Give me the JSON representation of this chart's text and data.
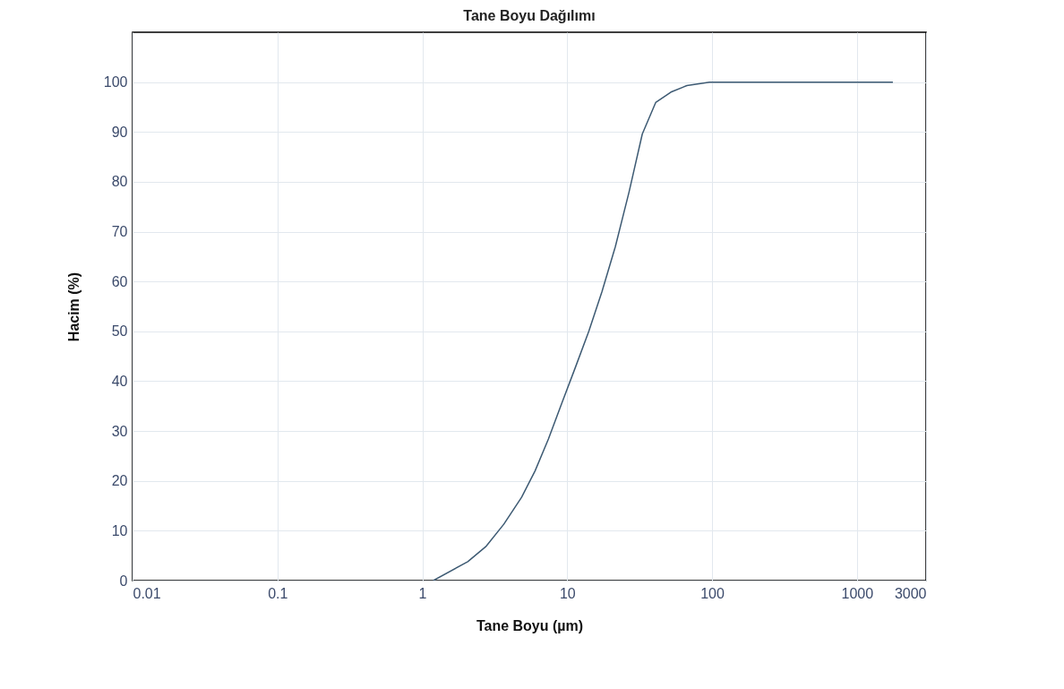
{
  "chart_data": {
    "type": "line",
    "title": "Tane Boyu Dağılımı",
    "xlabel": "Tane Boyu (µm)",
    "ylabel": "Hacim (%)",
    "x": [
      1.19,
      2.06,
      2.74,
      3.65,
      4.84,
      6.0,
      7.42,
      9.18,
      11.4,
      14.1,
      17.4,
      21.5,
      26.7,
      33,
      40.8,
      52,
      67,
      96,
      1770
    ],
    "series": [
      {
        "color": "#3d5a73",
        "values": [
          0,
          3.8,
          6.8,
          11.3,
          16.7,
          22,
          28.4,
          35.6,
          42.8,
          50,
          58,
          67,
          77.9,
          89.6,
          95.9,
          98,
          99.3,
          100,
          100
        ]
      }
    ],
    "log": "x",
    "xlim": [
      0.01,
      3000
    ],
    "xticks": [
      0.01,
      0.1,
      1,
      10,
      100,
      1000,
      3000
    ],
    "ylim": [
      0,
      110
    ],
    "yticks": [
      0,
      10,
      20,
      30,
      40,
      50,
      60,
      70,
      80,
      90,
      100
    ],
    "grid": true,
    "marker": "none",
    "line_style": "solid"
  }
}
